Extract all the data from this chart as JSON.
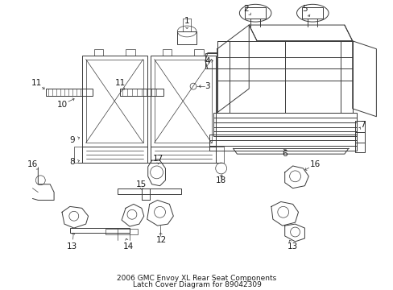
{
  "title_line1": "2006 GMC Envoy XL Rear Seat Components",
  "title_line2": "Latch Cover Diagram for 89042309",
  "background_color": "#ffffff",
  "fig_width": 4.89,
  "fig_height": 3.6,
  "dpi": 100,
  "label_color": "#1a1a1a",
  "line_color": "#3a3a3a",
  "title_fontsize": 6.5
}
